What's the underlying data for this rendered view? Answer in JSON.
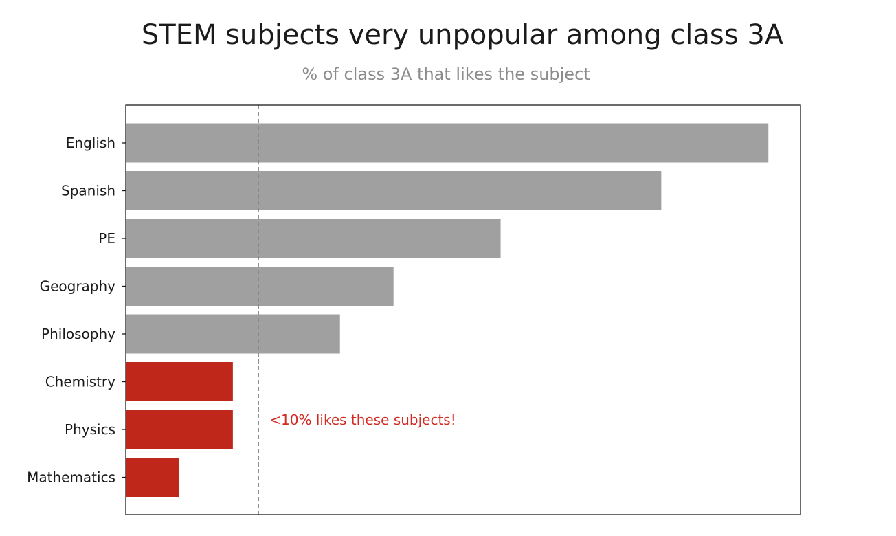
{
  "chart_data": {
    "type": "bar",
    "orientation": "horizontal",
    "title": "STEM subjects very unpopular among class 3A",
    "subtitle": "% of class 3A that likes the subject",
    "xlabel": "",
    "ylabel": "",
    "categories": [
      "English",
      "Spanish",
      "PE",
      "Geography",
      "Philosophy",
      "Chemistry",
      "Physics",
      "Mathematics"
    ],
    "values": [
      60,
      50,
      35,
      25,
      20,
      10,
      10,
      5
    ],
    "highlighted": [
      "Chemistry",
      "Physics",
      "Mathematics"
    ],
    "xlim": [
      0,
      63
    ],
    "xticks_shown": false,
    "grid": false,
    "legend": "none",
    "reference_line": {
      "value": 12.4,
      "style": "dashed"
    },
    "annotation": {
      "text": "<10% likes these subjects!"
    },
    "colors": {
      "default_bar": "#a0a0a0",
      "highlight_bar": "#bf271b",
      "annotation_text": "#d12a20",
      "reference_line": "#888888",
      "title": "#1a1a1a",
      "subtitle": "#8c8c8c"
    }
  }
}
